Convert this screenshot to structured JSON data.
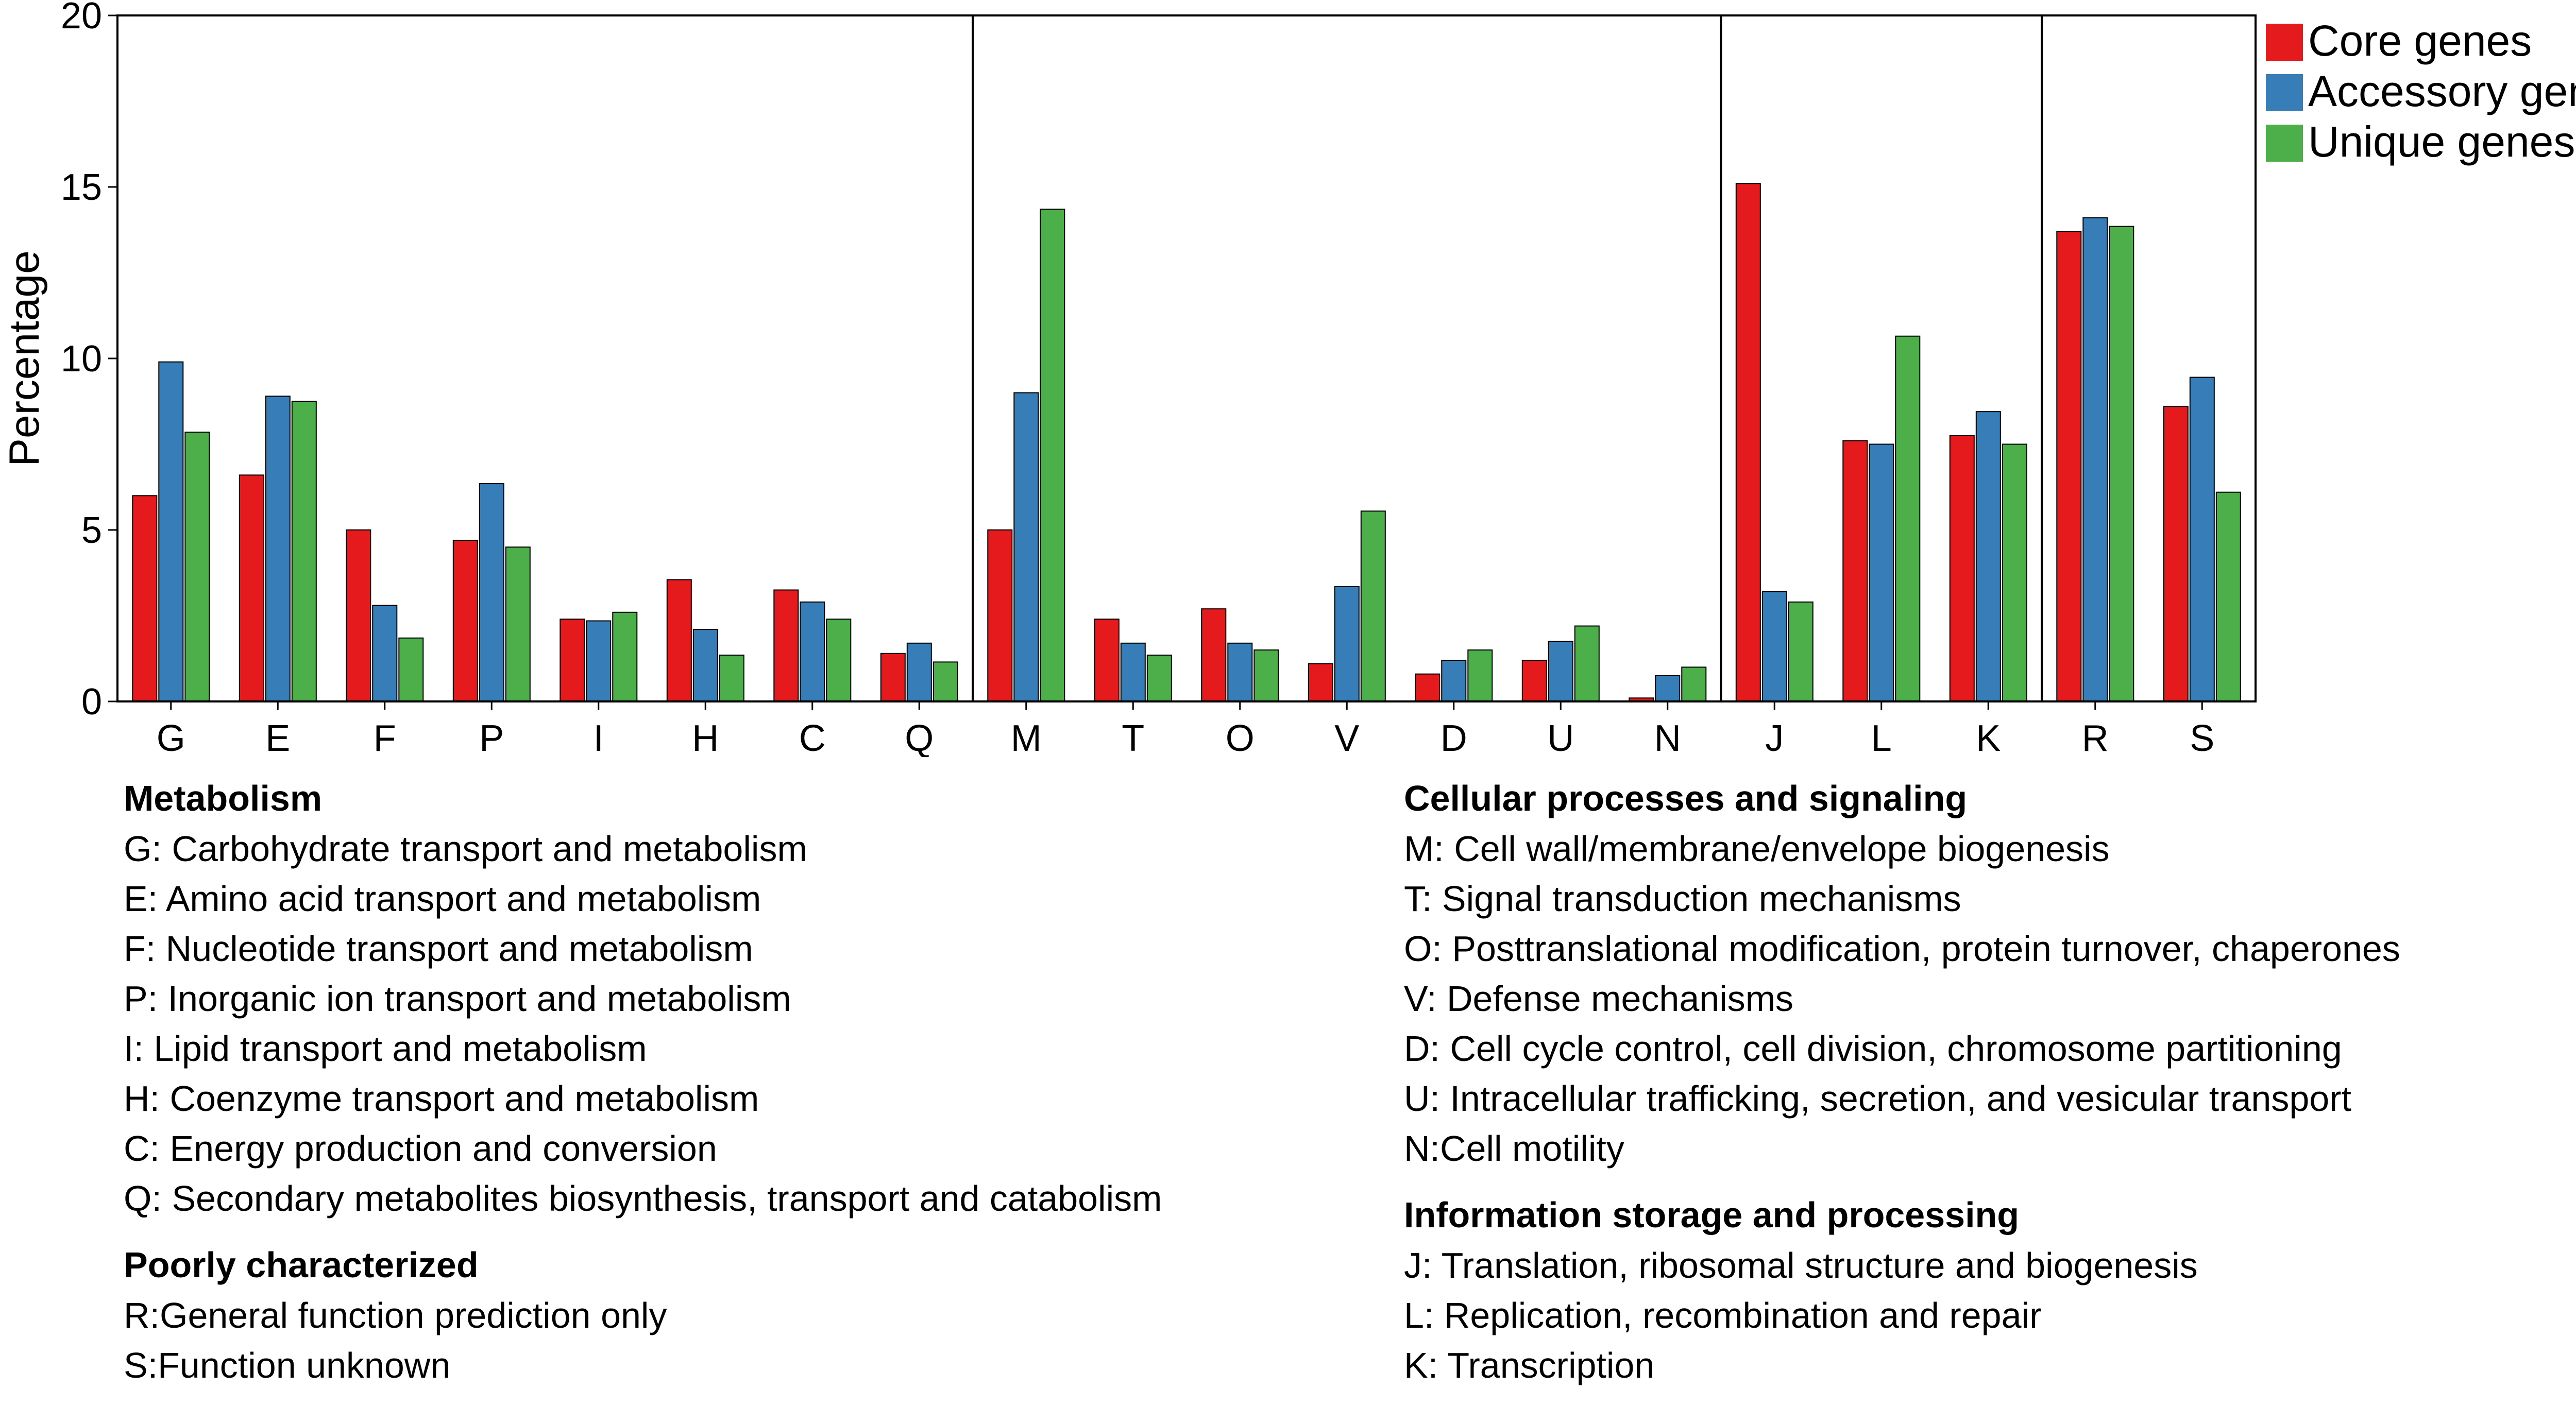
{
  "chart_data": {
    "type": "bar",
    "ylabel": "Percentage",
    "xlabel": "",
    "ylim": [
      0,
      20
    ],
    "yticks": [
      0,
      5,
      10,
      15,
      20
    ],
    "grid": false,
    "legend_position": "top-right",
    "categories": [
      "G",
      "E",
      "F",
      "P",
      "I",
      "H",
      "C",
      "Q",
      "M",
      "T",
      "O",
      "V",
      "D",
      "U",
      "N",
      "J",
      "L",
      "K",
      "R",
      "S"
    ],
    "series": [
      {
        "name": "Core genes",
        "color": "#e41a1c",
        "values": [
          6.0,
          6.6,
          5.0,
          4.7,
          2.4,
          3.55,
          3.25,
          1.4,
          5.0,
          2.4,
          2.7,
          1.1,
          0.8,
          1.2,
          0.1,
          15.1,
          7.6,
          7.75,
          13.7,
          8.6
        ]
      },
      {
        "name": "Accessory genes",
        "color": "#377eb8",
        "values": [
          9.9,
          8.9,
          2.8,
          6.35,
          2.35,
          2.1,
          2.9,
          1.7,
          9.0,
          1.7,
          1.7,
          3.35,
          1.2,
          1.75,
          0.75,
          3.2,
          7.5,
          8.45,
          14.1,
          9.45
        ]
      },
      {
        "name": "Unique genes",
        "color": "#4daf4a",
        "values": [
          7.85,
          8.75,
          1.85,
          4.5,
          2.6,
          1.35,
          2.4,
          1.15,
          14.35,
          1.35,
          1.5,
          5.55,
          1.5,
          2.2,
          1.0,
          2.9,
          10.65,
          7.5,
          13.85,
          6.1
        ]
      }
    ],
    "group_dividers_after": [
      "Q",
      "N",
      "K"
    ]
  },
  "legend": [
    {
      "label": "Core genes",
      "color": "#e41a1c"
    },
    {
      "label": "Accessory genes",
      "color": "#377eb8"
    },
    {
      "label": "Unique genes",
      "color": "#4daf4a"
    }
  ],
  "descriptions": {
    "metabolism": {
      "heading": "Metabolism",
      "items": [
        "G: Carbohydrate transport and metabolism",
        "E: Amino acid transport and metabolism",
        "F: Nucleotide transport and metabolism",
        "P: Inorganic ion transport and metabolism",
        "I: Lipid transport and metabolism",
        "H: Coenzyme transport and metabolism",
        "C: Energy production and conversion",
        "Q: Secondary metabolites biosynthesis, transport and catabolism"
      ]
    },
    "poorly": {
      "heading": "Poorly characterized",
      "items": [
        "R:General function prediction only",
        "S:Function unknown"
      ]
    },
    "cellular": {
      "heading": "Cellular processes and signaling",
      "items": [
        "M: Cell wall/membrane/envelope biogenesis",
        "T: Signal transduction mechanisms",
        "O: Posttranslational modification, protein turnover, chaperones",
        "V: Defense mechanisms",
        "D: Cell cycle control, cell division, chromosome partitioning",
        "U: Intracellular trafficking, secretion, and vesicular transport",
        "N:Cell motility"
      ]
    },
    "information": {
      "heading": "Information storage and processing",
      "items": [
        "J: Translation, ribosomal structure and biogenesis",
        "L: Replication, recombination and repair",
        "K: Transcription"
      ]
    }
  }
}
